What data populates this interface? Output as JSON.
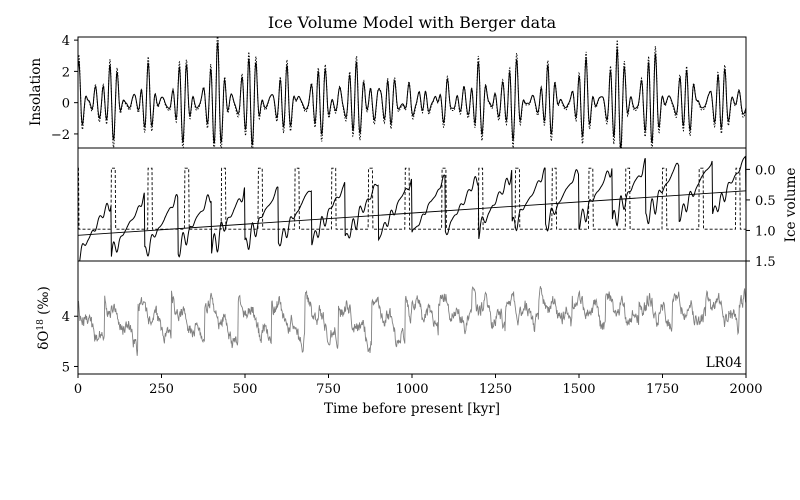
{
  "chart_data": {
    "title": "Ice Volume Model with Berger data",
    "xlabel": "Time before present [kyr]",
    "xlim": [
      0,
      2000
    ],
    "xticks": [
      "0",
      "250",
      "500",
      "750",
      "1000",
      "1250",
      "1500",
      "1750",
      "2000"
    ],
    "panels": [
      {
        "type": "line",
        "ylabel": "Insolation",
        "ylim": [
          -2.9,
          4.2
        ],
        "yticks": [
          "4",
          "2",
          "0",
          "−2"
        ],
        "series": [
          {
            "style": "solid",
            "color": "#000000"
          },
          {
            "style": "dotted",
            "color": "#000000"
          }
        ]
      },
      {
        "type": "line",
        "ylabel": "Ice volume",
        "yaxis_side": "right",
        "yaxis_inverted": true,
        "ylim": [
          1.5,
          -0.35
        ],
        "yticks": [
          "0.0",
          "0.5",
          "1.0",
          "1.5"
        ],
        "series": [
          {
            "style": "solid",
            "color": "#000000"
          },
          {
            "style": "dashed",
            "color": "#000000"
          },
          {
            "style": "trend",
            "color": "#000000",
            "x": [
              0,
              2000
            ],
            "y": [
              1.08,
              0.35
            ]
          }
        ]
      },
      {
        "type": "line",
        "ylabel": "δO",
        "ylabel_sup": "18",
        "ylabel_unit": " (‰)",
        "yaxis_inverted": true,
        "ylim": [
          5.15,
          2.9
        ],
        "yticks": [
          "4",
          "5"
        ],
        "annotation": "LR04",
        "series": [
          {
            "name": "LR04",
            "style": "solid",
            "color": "#808080"
          }
        ]
      }
    ]
  }
}
